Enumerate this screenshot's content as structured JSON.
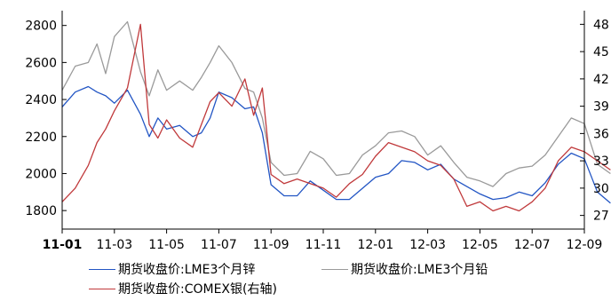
{
  "chart_data": {
    "type": "line",
    "x_tick_labels": [
      "11-01",
      "11-03",
      "11-05",
      "11-07",
      "11-09",
      "11-11",
      "12-01",
      "12-03",
      "12-05",
      "12-07",
      "12-09"
    ],
    "left_axis": {
      "ylim": [
        1700,
        2880
      ],
      "ticks": [
        1800,
        2000,
        2200,
        2400,
        2600,
        2800
      ]
    },
    "right_axis": {
      "ylim": [
        25.5,
        49.5
      ],
      "ticks": [
        27,
        30,
        33,
        36,
        39,
        42,
        45,
        48
      ]
    },
    "grid": false,
    "legend_position": "bottom",
    "series": [
      {
        "name": "期货收盘价:LME3个月锌",
        "axis": "left",
        "color": "#2255c4",
        "points": [
          [
            "11-01",
            2360
          ],
          [
            "11-01",
            2440
          ],
          [
            "11-02",
            2470
          ],
          [
            "11-02",
            2440
          ],
          [
            "11-02",
            2420
          ],
          [
            "11-03",
            2380
          ],
          [
            "11-03",
            2450
          ],
          [
            "11-04",
            2320
          ],
          [
            "11-04",
            2200
          ],
          [
            "11-04",
            2300
          ],
          [
            "11-05",
            2240
          ],
          [
            "11-05",
            2260
          ],
          [
            "11-06",
            2200
          ],
          [
            "11-06",
            2220
          ],
          [
            "11-06",
            2300
          ],
          [
            "11-07",
            2440
          ],
          [
            "11-07",
            2410
          ],
          [
            "11-08",
            2350
          ],
          [
            "11-08",
            2360
          ],
          [
            "11-08",
            2220
          ],
          [
            "11-09",
            1940
          ],
          [
            "11-09",
            1880
          ],
          [
            "11-10",
            1880
          ],
          [
            "11-10",
            1960
          ],
          [
            "11-11",
            1910
          ],
          [
            "11-11",
            1860
          ],
          [
            "11-12",
            1860
          ],
          [
            "11-12",
            1920
          ],
          [
            "12-01",
            1980
          ],
          [
            "12-01",
            2000
          ],
          [
            "12-02",
            2070
          ],
          [
            "12-02",
            2060
          ],
          [
            "12-03",
            2020
          ],
          [
            "12-03",
            2050
          ],
          [
            "12-04",
            1970
          ],
          [
            "12-04",
            1930
          ],
          [
            "12-05",
            1890
          ],
          [
            "12-05",
            1860
          ],
          [
            "12-06",
            1870
          ],
          [
            "12-06",
            1900
          ],
          [
            "12-07",
            1880
          ],
          [
            "12-07",
            1950
          ],
          [
            "12-08",
            2050
          ],
          [
            "12-08",
            2110
          ],
          [
            "12-09",
            2080
          ],
          [
            "12-09",
            1900
          ],
          [
            "12-10",
            1840
          ]
        ]
      },
      {
        "name": "期货收盘价:LME3个月铅",
        "axis": "left",
        "color": "#9a9a9a",
        "points": [
          [
            "11-01",
            2450
          ],
          [
            "11-01",
            2580
          ],
          [
            "11-02",
            2600
          ],
          [
            "11-02",
            2700
          ],
          [
            "11-02",
            2540
          ],
          [
            "11-03",
            2740
          ],
          [
            "11-03",
            2820
          ],
          [
            "11-04",
            2550
          ],
          [
            "11-04",
            2420
          ],
          [
            "11-04",
            2560
          ],
          [
            "11-05",
            2450
          ],
          [
            "11-05",
            2500
          ],
          [
            "11-06",
            2450
          ],
          [
            "11-06",
            2520
          ],
          [
            "11-06",
            2600
          ],
          [
            "11-07",
            2690
          ],
          [
            "11-07",
            2600
          ],
          [
            "11-08",
            2460
          ],
          [
            "11-08",
            2440
          ],
          [
            "11-08",
            2300
          ],
          [
            "11-09",
            2060
          ],
          [
            "11-09",
            1990
          ],
          [
            "11-10",
            2000
          ],
          [
            "11-10",
            2120
          ],
          [
            "11-11",
            2080
          ],
          [
            "11-11",
            1990
          ],
          [
            "11-12",
            2000
          ],
          [
            "11-12",
            2100
          ],
          [
            "12-01",
            2150
          ],
          [
            "12-01",
            2220
          ],
          [
            "12-02",
            2230
          ],
          [
            "12-02",
            2200
          ],
          [
            "12-03",
            2100
          ],
          [
            "12-03",
            2150
          ],
          [
            "12-04",
            2060
          ],
          [
            "12-04",
            1980
          ],
          [
            "12-05",
            1960
          ],
          [
            "12-05",
            1930
          ],
          [
            "12-06",
            2000
          ],
          [
            "12-06",
            2030
          ],
          [
            "12-07",
            2040
          ],
          [
            "12-07",
            2100
          ],
          [
            "12-08",
            2200
          ],
          [
            "12-08",
            2300
          ],
          [
            "12-09",
            2270
          ],
          [
            "12-09",
            2050
          ],
          [
            "12-10",
            2000
          ]
        ]
      },
      {
        "name": "期货收盘价:COMEX银(右轴)",
        "axis": "right",
        "color": "#c0393b",
        "points": [
          [
            "11-01",
            28.5
          ],
          [
            "11-01",
            30.0
          ],
          [
            "11-02",
            32.5
          ],
          [
            "11-02",
            35.0
          ],
          [
            "11-02",
            36.5
          ],
          [
            "11-03",
            38.5
          ],
          [
            "11-03",
            41.0
          ],
          [
            "11-04",
            48.0
          ],
          [
            "11-04",
            37.0
          ],
          [
            "11-04",
            35.5
          ],
          [
            "11-05",
            37.5
          ],
          [
            "11-05",
            35.5
          ],
          [
            "11-06",
            34.5
          ],
          [
            "11-06",
            37.0
          ],
          [
            "11-06",
            39.5
          ],
          [
            "11-07",
            40.5
          ],
          [
            "11-07",
            39.0
          ],
          [
            "11-08",
            42.0
          ],
          [
            "11-08",
            38.0
          ],
          [
            "11-08",
            41.0
          ],
          [
            "11-09",
            31.5
          ],
          [
            "11-09",
            30.5
          ],
          [
            "11-10",
            31.0
          ],
          [
            "11-10",
            30.5
          ],
          [
            "11-11",
            30.0
          ],
          [
            "11-11",
            29.0
          ],
          [
            "11-12",
            30.5
          ],
          [
            "11-12",
            31.5
          ],
          [
            "12-01",
            33.5
          ],
          [
            "12-01",
            35.0
          ],
          [
            "12-02",
            34.5
          ],
          [
            "12-02",
            34.0
          ],
          [
            "12-03",
            33.0
          ],
          [
            "12-03",
            32.5
          ],
          [
            "12-04",
            31.0
          ],
          [
            "12-04",
            28.0
          ],
          [
            "12-05",
            28.5
          ],
          [
            "12-05",
            27.5
          ],
          [
            "12-06",
            28.0
          ],
          [
            "12-06",
            27.5
          ],
          [
            "12-07",
            28.5
          ],
          [
            "12-07",
            30.0
          ],
          [
            "12-08",
            33.0
          ],
          [
            "12-08",
            34.5
          ],
          [
            "12-09",
            34.0
          ],
          [
            "12-09",
            33.0
          ],
          [
            "12-10",
            32.0
          ]
        ]
      }
    ]
  }
}
